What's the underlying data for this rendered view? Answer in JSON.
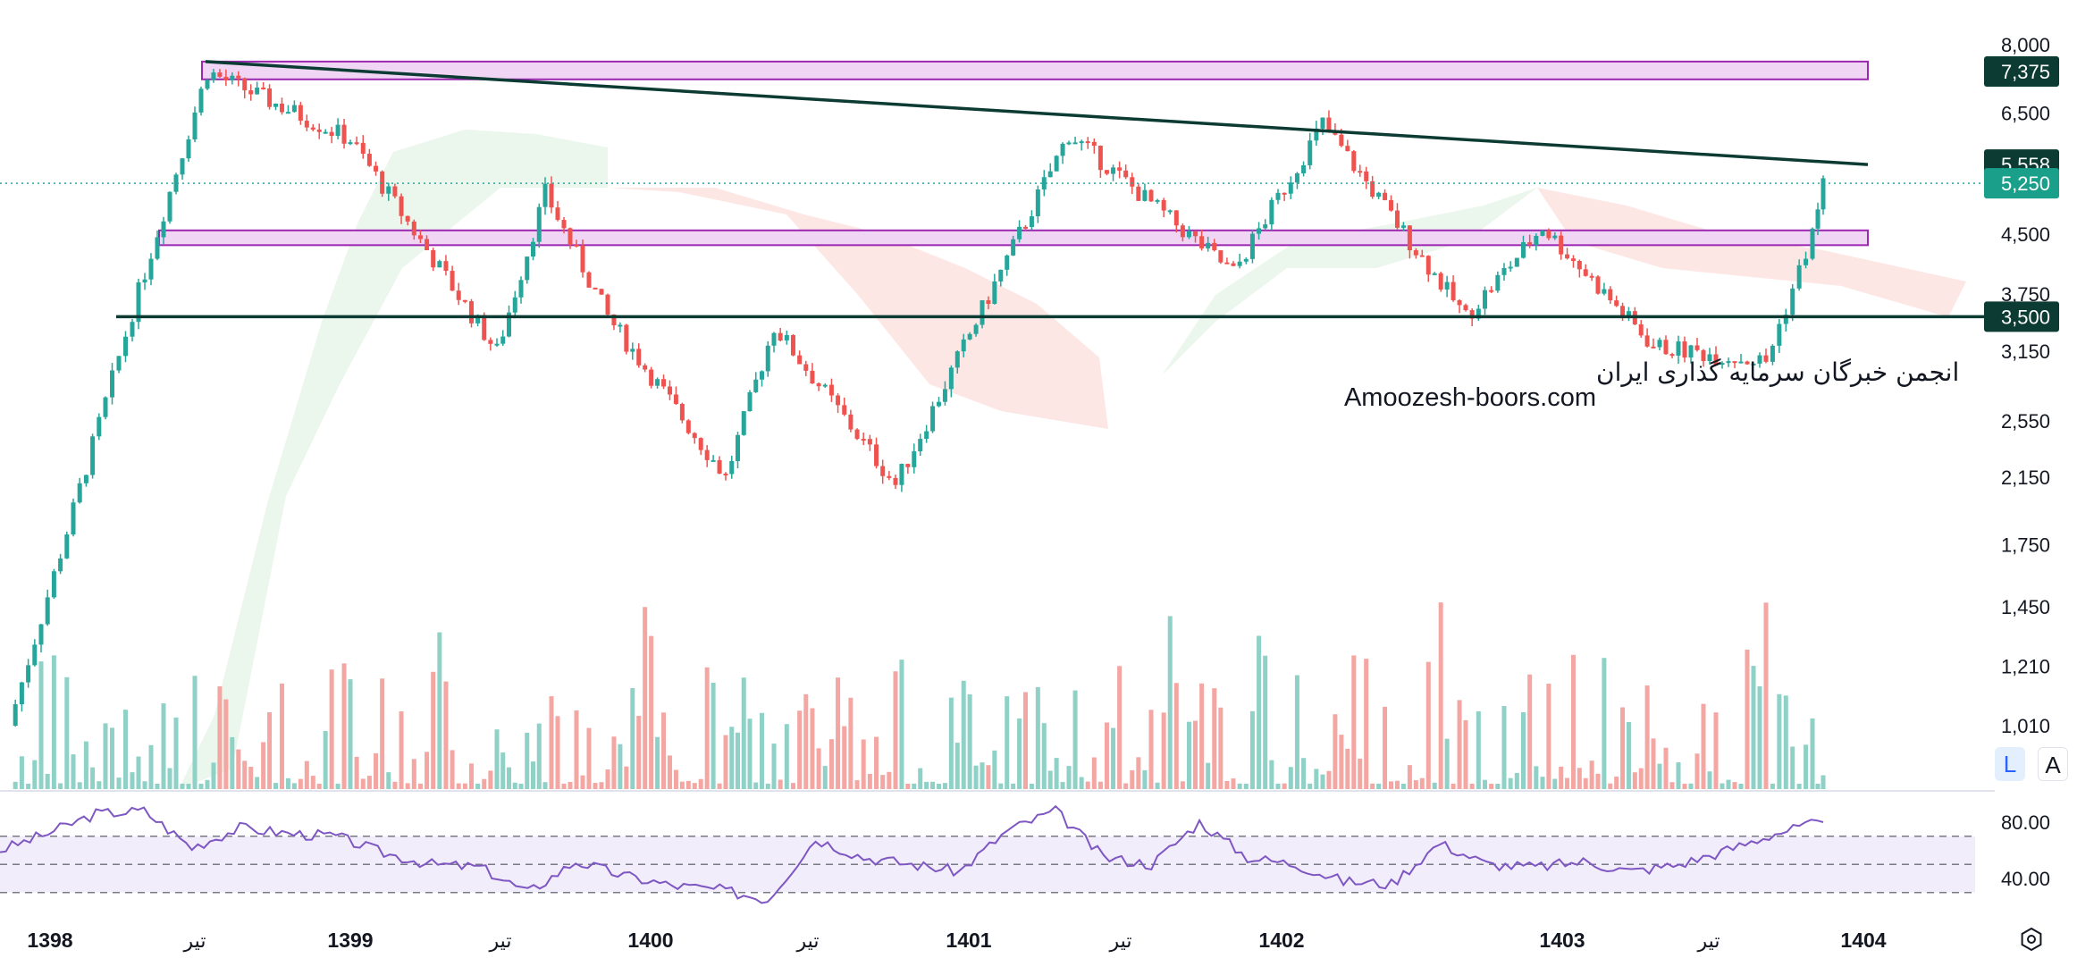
{
  "chart_data": {
    "type": "candlestick",
    "price_scale": "log",
    "price_axis_ticks": [
      "8,000",
      "6,500",
      "4,500",
      "3,750",
      "3,150",
      "2,550",
      "2,150",
      "1,750",
      "1,450",
      "1,210",
      "1,010"
    ],
    "price_labels": [
      {
        "text": "7,375",
        "value": 7375,
        "color": "#0b3b32"
      },
      {
        "text": "5,558",
        "value": 5558,
        "color": "#0b3b32"
      },
      {
        "text": "5,250",
        "value": 5250,
        "color": "#1aa08a"
      },
      {
        "text": "3,500",
        "value": 3500,
        "color": "#0b3b32"
      }
    ],
    "time_axis": [
      {
        "text": "1398",
        "bold": true
      },
      {
        "text": "تیر",
        "bold": false
      },
      {
        "text": "1399",
        "bold": true
      },
      {
        "text": "تیر",
        "bold": false
      },
      {
        "text": "1400",
        "bold": true
      },
      {
        "text": "تیر",
        "bold": false
      },
      {
        "text": "1401",
        "bold": true
      },
      {
        "text": "تیر",
        "bold": false
      },
      {
        "text": "1402",
        "bold": true
      },
      {
        "text": "1403",
        "bold": true
      },
      {
        "text": "تیر",
        "bold": false
      },
      {
        "text": "1404",
        "bold": true
      }
    ],
    "price_path_anchors": [
      {
        "time": "1398",
        "price": 1010
      },
      {
        "time": "1398 late",
        "price": 2700
      },
      {
        "time": "1398 Esfand",
        "price": 3550
      },
      {
        "time": "1399 early",
        "price": 7375
      },
      {
        "time": "1399",
        "price": 6000
      },
      {
        "time": "1399 Tir",
        "price": 3150
      },
      {
        "time": "1399 Shahrivar",
        "price": 5100
      },
      {
        "time": "1400 early",
        "price": 3500
      },
      {
        "time": "1400 Shahrivar",
        "price": 2150
      },
      {
        "time": "1400 Dey",
        "price": 3400
      },
      {
        "time": "1401 early",
        "price": 2100
      },
      {
        "time": "1401 Tir",
        "price": 6100
      },
      {
        "time": "1401 Aban",
        "price": 4000
      },
      {
        "time": "1402 early",
        "price": 6300
      },
      {
        "time": "1402 Mehr",
        "price": 3500
      },
      {
        "time": "1403 early",
        "price": 4600
      },
      {
        "time": "1403 Tir",
        "price": 3200
      },
      {
        "time": "1403 Mehr",
        "price": 3050
      },
      {
        "time": "1403 Bahman",
        "price": 4500
      },
      {
        "time": "1404",
        "price": 5250
      }
    ],
    "last_price": 5250,
    "horizontal_levels": [
      3500
    ],
    "resistance_zones": [
      {
        "low": 7200,
        "high": 7600
      },
      {
        "low": 4350,
        "high": 4550
      }
    ],
    "trendline": {
      "from": 7600,
      "to": 5558
    },
    "ichimoku_cloud": true,
    "volume_bars": true,
    "rsi": {
      "levels": [
        70,
        50,
        30
      ],
      "tick_labels": [
        "80.00",
        "40.00"
      ],
      "path": [
        60,
        72,
        86,
        88,
        62,
        76,
        72,
        70,
        58,
        50,
        48,
        30,
        52,
        42,
        35,
        32,
        25,
        68,
        55,
        50,
        45,
        74,
        88,
        55,
        50,
        80,
        55,
        50,
        38,
        36,
        65,
        50,
        48,
        52,
        45,
        50,
        60,
        72,
        80
      ],
      "last": 80
    },
    "watermark": {
      "line1": "انجمن خبرگان سرمایه گذاری ایران",
      "line2": "Amoozesh-boors.com"
    },
    "colors": {
      "up": "#26a69a",
      "down": "#ef5350",
      "volume_up": "#8fd1c6",
      "volume_down": "#f4a6a3",
      "cloud_bull": "#e7f4ea",
      "cloud_bear": "#fde3e1",
      "zone_fill": "#f0d6f4",
      "zone_stroke": "#9c27b0",
      "trendline": "#0b3b32",
      "rsi_line": "#7e57c2",
      "rsi_band": "#f1edfb"
    }
  },
  "controls": {
    "log_button": "L",
    "auto_button": "A",
    "settings_icon": "settings-icon"
  }
}
